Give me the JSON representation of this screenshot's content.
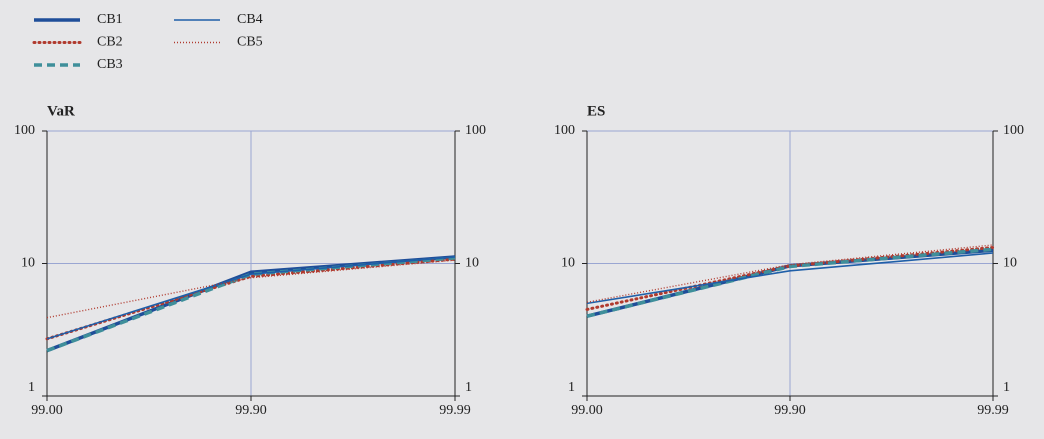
{
  "chart_data": [
    {
      "type": "line",
      "title": "VaR",
      "log_y": true,
      "grid": true,
      "categories": [
        "99.00",
        "99.90",
        "99.99"
      ],
      "ylim": [
        1,
        100
      ],
      "yticks": [
        1,
        10,
        100
      ],
      "y2lim": [
        1,
        100
      ],
      "y2ticks": [
        1,
        10,
        100
      ],
      "series": [
        {
          "name": "CB1",
          "color": "#1f4e99",
          "style": "thick",
          "values": [
            2.2,
            8.6,
            11.2
          ]
        },
        {
          "name": "CB2",
          "color": "#b03a2e",
          "style": "dotted",
          "values": [
            2.7,
            8.0,
            10.8
          ]
        },
        {
          "name": "CB3",
          "color": "#3f8f9a",
          "style": "dashed",
          "values": [
            2.2,
            8.3,
            11.0
          ]
        },
        {
          "name": "CB4",
          "color": "#1f5fa8",
          "style": "thin",
          "values": [
            2.7,
            8.3,
            11.2
          ]
        },
        {
          "name": "CB5",
          "color": "#b03a2e",
          "style": "thin-dotted",
          "values": [
            3.9,
            7.8,
            10.6
          ]
        }
      ]
    },
    {
      "type": "line",
      "title": "ES",
      "log_y": true,
      "grid": true,
      "categories": [
        "99.00",
        "99.90",
        "99.99"
      ],
      "ylim": [
        1,
        100
      ],
      "yticks": [
        1,
        10,
        100
      ],
      "y2lim": [
        1,
        100
      ],
      "y2ticks": [
        1,
        10,
        100
      ],
      "series": [
        {
          "color": "#1f4e99",
          "style": "thick",
          "values": [
            4.0,
            9.6,
            12.6
          ]
        },
        {
          "color": "#b03a2e",
          "style": "dotted",
          "values": [
            4.5,
            9.6,
            13.2
          ]
        },
        {
          "color": "#3f8f9a",
          "style": "dashed",
          "values": [
            4.0,
            9.5,
            12.8
          ]
        },
        {
          "color": "#1f5fa8",
          "style": "thin",
          "values": [
            5.0,
            8.8,
            12.0
          ]
        },
        {
          "color": "#b03a2e",
          "style": "thin-dotted",
          "values": [
            5.1,
            9.8,
            13.8
          ]
        }
      ]
    }
  ]
}
